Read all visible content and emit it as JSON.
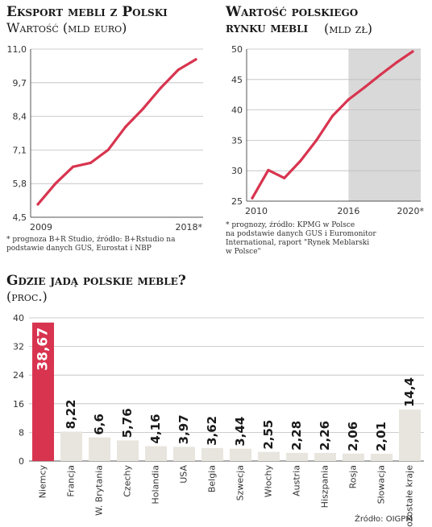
{
  "left_chart": {
    "title": "Eksport mebli z Polski",
    "subtitle": "Wartość (mld euro)",
    "note": "* prognoza B+R Studio, źródło: B+Rstudio na podstawie danych GUS, Eurostat i NBP"
  },
  "right_chart": {
    "title_line1": "Wartość polskiego",
    "title_line2": "rynku mebli",
    "subtitle": "(mld zł)",
    "note_line1": "* prognozy, źródło: KPMG w Polsce",
    "note_line2": "na podstawie danych GUS i Euromonitor",
    "note_line3": "International, raport \"Rynek Meblarski",
    "note_line4": "w Polsce\""
  },
  "bottom_chart": {
    "title": "Gdzie jadą polskie meble?",
    "subtitle": "(proc.)",
    "source": "Źródło: OIGPM"
  },
  "colors": {
    "accent": "#d8344f",
    "bar": "#e7e5de",
    "shade": "#d9d9d9"
  },
  "chart_data": [
    {
      "type": "line",
      "title": "Eksport mebli z Polski",
      "ylabel": "Wartość (mld euro)",
      "x": [
        2009,
        2010,
        2011,
        2012,
        2013,
        2014,
        2015,
        2016,
        2017,
        2018
      ],
      "values": [
        5.0,
        5.8,
        6.45,
        6.6,
        7.1,
        8.0,
        8.7,
        9.5,
        10.2,
        10.6
      ],
      "x_tick_labels": [
        "2009",
        "2018*"
      ],
      "y_ticks": [
        "4,5",
        "5,8",
        "7,1",
        "8,4",
        "9,7",
        "11,0"
      ],
      "ylim": [
        4.5,
        11.0
      ],
      "grid": true
    },
    {
      "type": "line",
      "title": "Wartość polskiego rynku mebli",
      "ylabel": "(mld zł)",
      "x": [
        2010,
        2011,
        2012,
        2013,
        2014,
        2015,
        2016,
        2017,
        2018,
        2019,
        2020
      ],
      "values": [
        25.5,
        30.1,
        28.8,
        31.6,
        35.0,
        39.0,
        41.7,
        43.7,
        45.8,
        47.8,
        49.6
      ],
      "x_tick_labels": [
        "2010",
        "2016",
        "2020*"
      ],
      "y_ticks": [
        "25",
        "30",
        "35",
        "40",
        "45",
        "50"
      ],
      "ylim": [
        25,
        50
      ],
      "forecast_from": 2016,
      "grid": true
    },
    {
      "type": "bar",
      "title": "Gdzie jadą polskie meble?",
      "ylabel": "(proc.)",
      "categories": [
        "Niemcy",
        "Francja",
        "W. Brytania",
        "Czechy",
        "Holandia",
        "USA",
        "Belgia",
        "Szwecja",
        "Włochy",
        "Austria",
        "Hiszpania",
        "Rosja",
        "Słowacja",
        "pozostałe kraje"
      ],
      "values": [
        38.67,
        8.22,
        6.6,
        5.76,
        4.16,
        3.97,
        3.62,
        3.44,
        2.55,
        2.28,
        2.26,
        2.06,
        2.01,
        14.4
      ],
      "value_labels": [
        "38,67",
        "8,22",
        "6,6",
        "5,76",
        "4,16",
        "3,97",
        "3,62",
        "3,44",
        "2,55",
        "2,28",
        "2,26",
        "2,06",
        "2,01",
        "14,4"
      ],
      "y_ticks": [
        "0",
        "8",
        "16",
        "24",
        "32",
        "40"
      ],
      "ylim": [
        0,
        40
      ],
      "highlight_index": 0,
      "grid": true
    }
  ]
}
